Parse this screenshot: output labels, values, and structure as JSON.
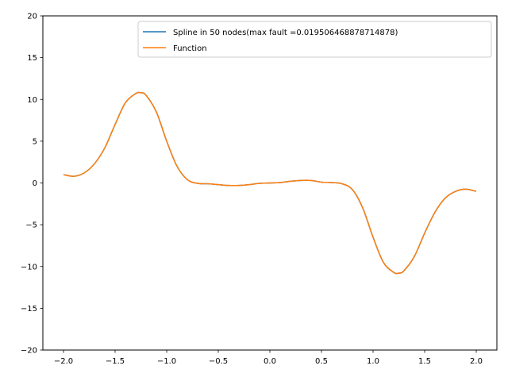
{
  "chart_data": {
    "type": "line",
    "title": "",
    "xlabel": "",
    "ylabel": "",
    "xlim": [
      -2.2,
      2.2
    ],
    "ylim": [
      -20,
      20
    ],
    "grid": false,
    "legend_position": "top-right",
    "xticks": [
      -2.0,
      -1.5,
      -1.0,
      -0.5,
      0.0,
      0.5,
      1.0,
      1.5,
      2.0
    ],
    "xtick_labels": [
      "−2.0",
      "−1.5",
      "−1.0",
      "−0.5",
      "0.0",
      "0.5",
      "1.0",
      "1.5",
      "2.0"
    ],
    "yticks": [
      -20,
      -15,
      -10,
      -5,
      0,
      5,
      10,
      15,
      20
    ],
    "ytick_labels": [
      "−20",
      "−15",
      "−10",
      "−5",
      "0",
      "5",
      "10",
      "15",
      "20"
    ],
    "x": [
      -2.0,
      -1.9,
      -1.8,
      -1.7,
      -1.6,
      -1.5,
      -1.4,
      -1.3,
      -1.25,
      -1.2,
      -1.1,
      -1.0,
      -0.9,
      -0.8,
      -0.7,
      -0.6,
      -0.5,
      -0.4,
      -0.3,
      -0.2,
      -0.1,
      0.0,
      0.1,
      0.2,
      0.3,
      0.4,
      0.5,
      0.6,
      0.7,
      0.8,
      0.9,
      1.0,
      1.1,
      1.2,
      1.25,
      1.3,
      1.4,
      1.5,
      1.6,
      1.7,
      1.8,
      1.9,
      2.0
    ],
    "series": [
      {
        "name": "Spline in 50 nodes(max fault =0.019506468878714878)",
        "color": "#1f77b4",
        "values": [
          1.0,
          0.8,
          1.2,
          2.3,
          4.2,
          7.0,
          9.6,
          10.7,
          10.8,
          10.5,
          8.5,
          5.0,
          2.0,
          0.4,
          -0.05,
          -0.1,
          -0.2,
          -0.3,
          -0.3,
          -0.2,
          -0.05,
          0.0,
          0.05,
          0.2,
          0.3,
          0.3,
          0.1,
          0.05,
          -0.1,
          -0.8,
          -3.0,
          -6.5,
          -9.5,
          -10.7,
          -10.8,
          -10.5,
          -8.8,
          -6.0,
          -3.5,
          -1.8,
          -1.0,
          -0.75,
          -1.0
        ]
      },
      {
        "name": "Function",
        "color": "#ff7f0e",
        "values": [
          1.0,
          0.8,
          1.2,
          2.3,
          4.2,
          7.0,
          9.6,
          10.7,
          10.8,
          10.5,
          8.5,
          5.0,
          2.0,
          0.4,
          -0.05,
          -0.1,
          -0.2,
          -0.3,
          -0.3,
          -0.2,
          -0.05,
          0.0,
          0.05,
          0.2,
          0.3,
          0.3,
          0.1,
          0.05,
          -0.1,
          -0.8,
          -3.0,
          -6.5,
          -9.5,
          -10.7,
          -10.8,
          -10.5,
          -8.8,
          -6.0,
          -3.5,
          -1.8,
          -1.0,
          -0.75,
          -1.0
        ]
      }
    ]
  }
}
